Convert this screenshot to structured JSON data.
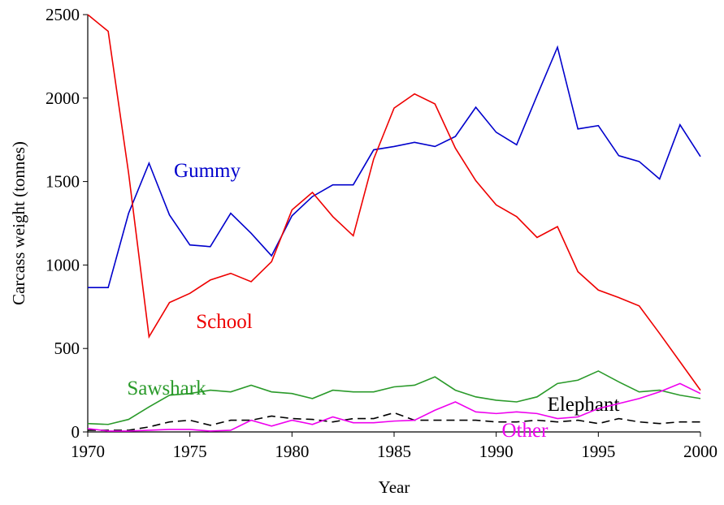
{
  "chart_data": {
    "type": "line",
    "xlabel": "Year",
    "ylabel": "Carcass weight (tonnes)",
    "x": [
      1970,
      1971,
      1972,
      1973,
      1974,
      1975,
      1976,
      1977,
      1978,
      1979,
      1980,
      1981,
      1982,
      1983,
      1984,
      1985,
      1986,
      1987,
      1988,
      1989,
      1990,
      1991,
      1992,
      1993,
      1994,
      1995,
      1996,
      1997,
      1998,
      1999,
      2000
    ],
    "xlim": [
      1970,
      2000
    ],
    "xticks": [
      1970,
      1975,
      1980,
      1985,
      1990,
      1995,
      2000
    ],
    "ylim": [
      0,
      2500
    ],
    "yticks": [
      0,
      500,
      1000,
      1500,
      2000,
      2500
    ],
    "grid": false,
    "legend": "inline",
    "series": [
      {
        "name": "Gummy",
        "color": "#0000cc",
        "style": "solid",
        "values": [
          865,
          865,
          1310,
          1610,
          1300,
          1120,
          1110,
          1310,
          1190,
          1055,
          1295,
          1410,
          1480,
          1480,
          1690,
          1710,
          1735,
          1710,
          1770,
          1945,
          1795,
          1720,
          2015,
          2305,
          1815,
          1835,
          1655,
          1620,
          1515,
          1840,
          1650
        ]
      },
      {
        "name": "School",
        "color": "#ee0000",
        "style": "solid",
        "values": [
          2500,
          2400,
          1550,
          570,
          775,
          830,
          910,
          950,
          900,
          1020,
          1330,
          1435,
          1290,
          1175,
          1635,
          1940,
          2025,
          1965,
          1700,
          1505,
          1360,
          1290,
          1165,
          1230,
          960,
          850,
          805,
          755,
          590,
          420,
          250
        ]
      },
      {
        "name": "Sawshark",
        "color": "#2a9a2a",
        "style": "solid",
        "values": [
          50,
          45,
          75,
          150,
          220,
          230,
          250,
          240,
          280,
          240,
          230,
          200,
          250,
          240,
          240,
          270,
          280,
          330,
          250,
          210,
          190,
          180,
          210,
          290,
          310,
          365,
          300,
          240,
          250,
          220,
          200
        ]
      },
      {
        "name": "Elephant",
        "color": "#000000",
        "style": "dashed",
        "values": [
          10,
          10,
          10,
          30,
          60,
          70,
          40,
          70,
          70,
          95,
          80,
          75,
          60,
          80,
          80,
          115,
          70,
          70,
          70,
          70,
          60,
          60,
          70,
          60,
          70,
          50,
          80,
          60,
          50,
          60,
          60
        ]
      },
      {
        "name": "Other",
        "color": "#ee00ee",
        "style": "solid",
        "values": [
          20,
          5,
          5,
          10,
          15,
          15,
          5,
          10,
          70,
          35,
          70,
          45,
          90,
          55,
          55,
          65,
          70,
          130,
          180,
          120,
          110,
          120,
          110,
          80,
          90,
          140,
          170,
          200,
          240,
          290,
          230
        ]
      }
    ]
  }
}
